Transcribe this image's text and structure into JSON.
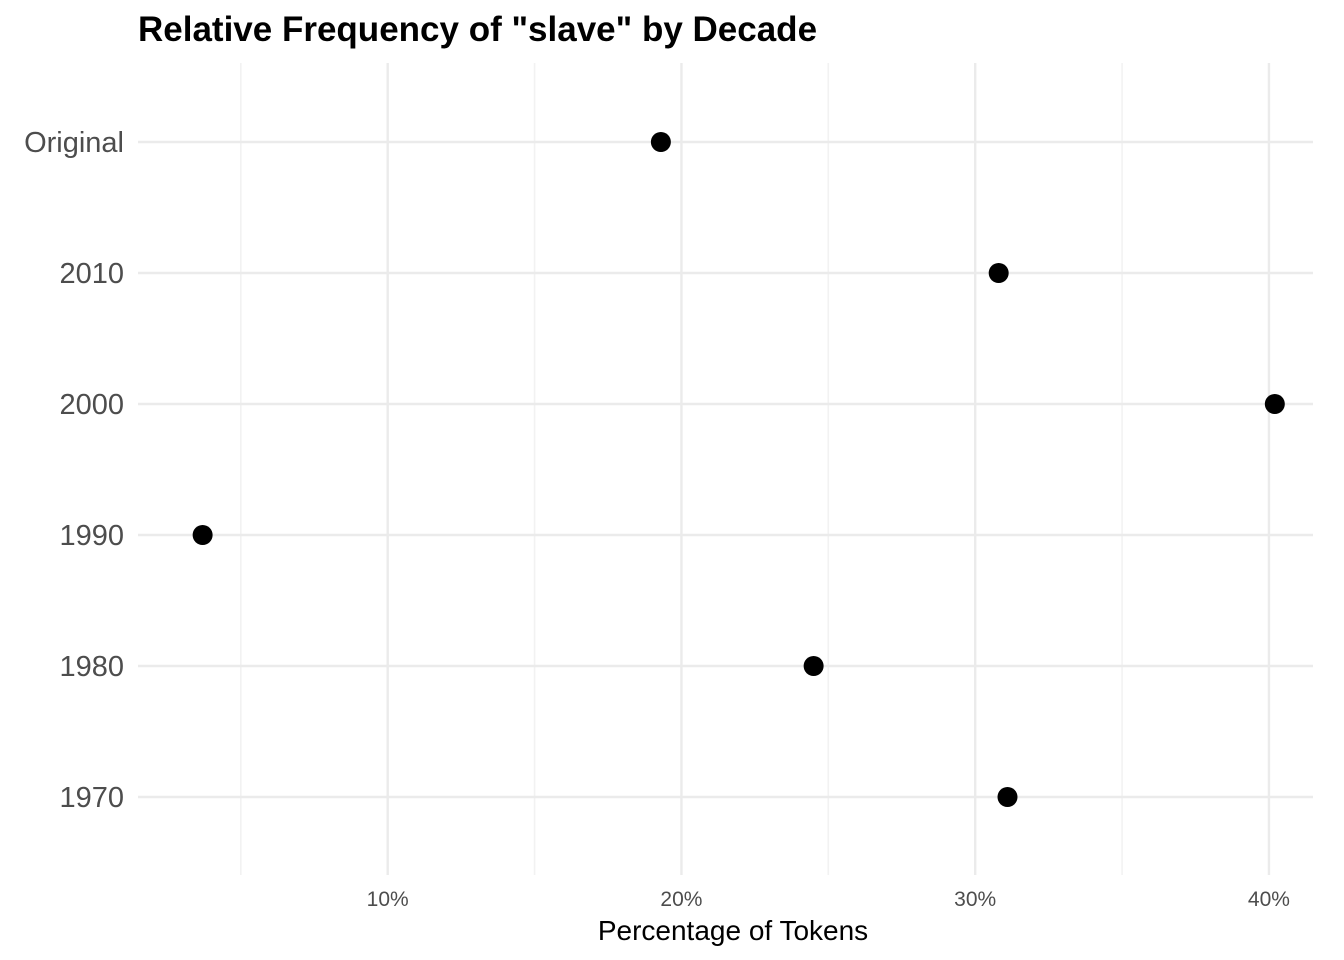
{
  "chart_data": {
    "type": "scatter",
    "title": "Relative Frequency of \"slave\" by Decade",
    "xlabel": "Percentage of Tokens",
    "ylabel": "",
    "categories": [
      "1970",
      "1980",
      "1990",
      "2000",
      "2010",
      "Original"
    ],
    "values": [
      31.1,
      24.5,
      3.7,
      40.2,
      30.8,
      19.3
    ],
    "xlim": [
      1.5,
      41.5
    ],
    "x_ticks": [
      10,
      20,
      30,
      40
    ],
    "x_tick_labels": [
      "10%",
      "20%",
      "30%",
      "40%"
    ],
    "grid": true,
    "legend": "none",
    "colors": {
      "point": "#000000",
      "grid_major": "#ebebeb",
      "grid_minor": "#f2f2f2",
      "axis_text": "#4d4d4d"
    }
  }
}
